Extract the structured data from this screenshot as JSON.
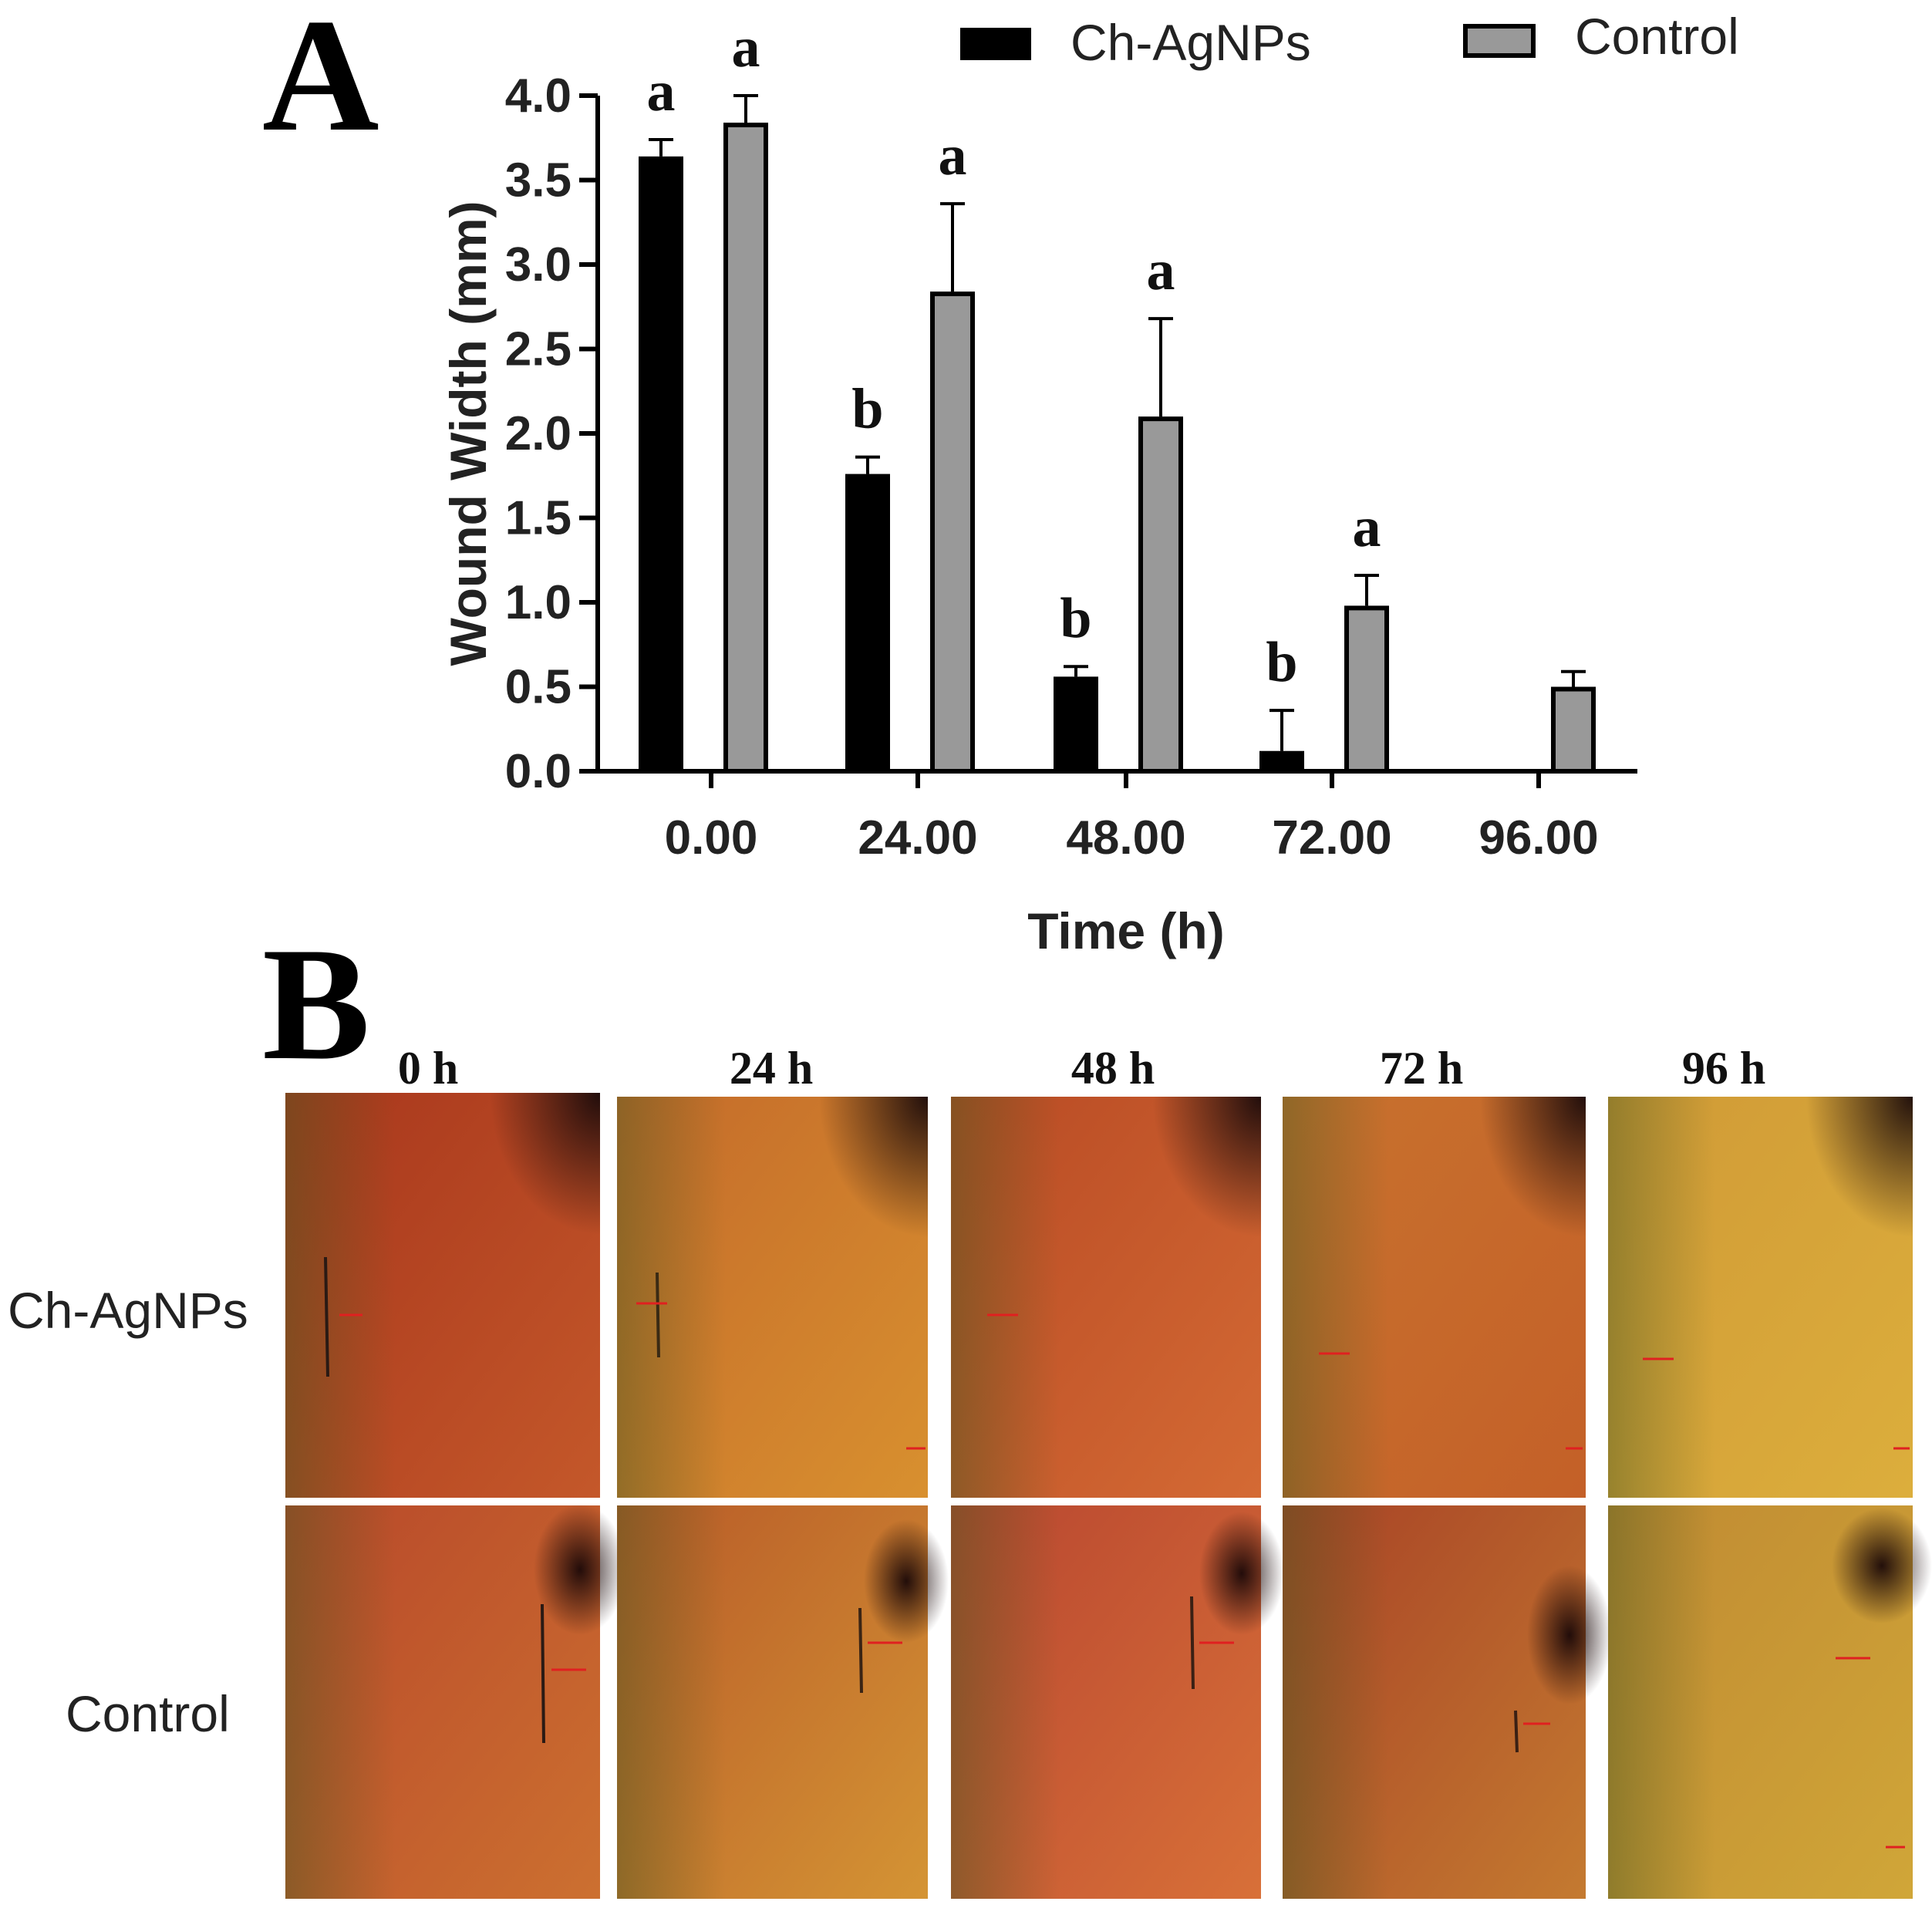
{
  "panels": {
    "a_label": "A",
    "b_label": "B"
  },
  "chart_data": {
    "type": "bar",
    "xlabel": "Time (h)",
    "ylabel": "Wound Width (mm)",
    "categories": [
      "0.00",
      "24.00",
      "48.00",
      "72.00",
      "96.00"
    ],
    "ylim": [
      0,
      4.0
    ],
    "yticks": [
      "0.0",
      "0.5",
      "1.0",
      "1.5",
      "2.0",
      "2.5",
      "3.0",
      "3.5",
      "4.0"
    ],
    "legend_position": "top-right",
    "grid": false,
    "series": [
      {
        "name": "Ch-AgNPs",
        "color": "#000000",
        "values": [
          3.64,
          1.76,
          0.56,
          0.12,
          0
        ],
        "errors": [
          0.1,
          0.1,
          0.06,
          0.24,
          0
        ],
        "letters": [
          "a",
          "b",
          "b",
          "b",
          ""
        ]
      },
      {
        "name": "Control",
        "color": "#999999",
        "values": [
          3.84,
          2.84,
          2.1,
          0.98,
          0.5
        ],
        "errors": [
          0.16,
          0.52,
          0.58,
          0.18,
          0.09
        ],
        "letters": [
          "a",
          "a",
          "a",
          "a",
          ""
        ]
      }
    ]
  },
  "micrographs": {
    "time_labels": [
      "0 h",
      "24 h",
      "48 h",
      "72 h",
      "96 h"
    ],
    "row_labels": [
      "Ch-AgNPs",
      "Control"
    ]
  }
}
